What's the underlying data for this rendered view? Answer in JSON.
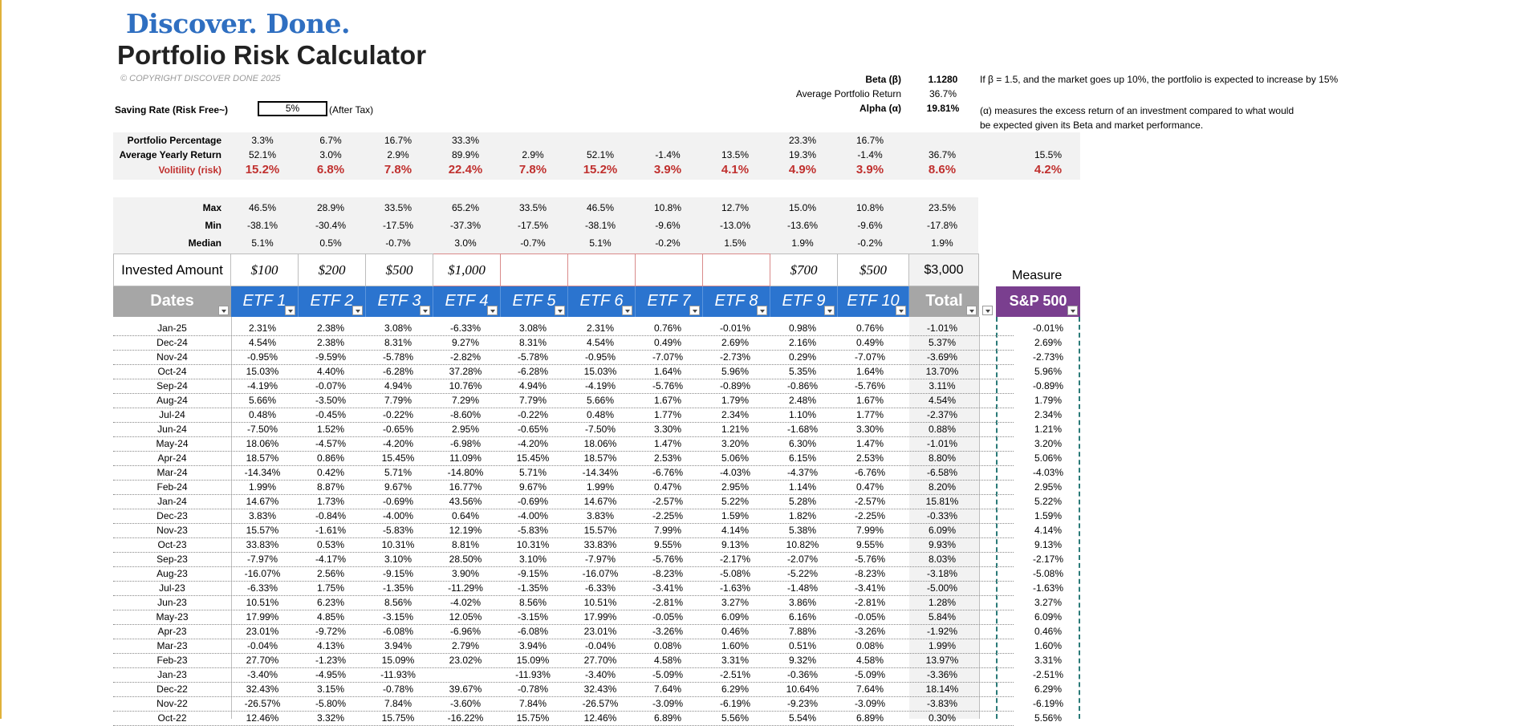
{
  "brand": "Discover. Done.",
  "title": "Portfolio Risk Calculator",
  "copyright": "© COPYRIGHT DISCOVER DONE 2025",
  "saving_rate": {
    "label": "Saving Rate (Risk Free~)",
    "value": "5%",
    "note": "(After Tax)"
  },
  "stats_right": [
    {
      "label": "Beta (β)",
      "value": "1.1280",
      "bold": true
    },
    {
      "label": "Average Portfolio Return",
      "value": "36.7%",
      "bold": false
    },
    {
      "label": "Alpha (α)",
      "value": "19.81%",
      "bold": true
    }
  ],
  "beta_note": "If β = 1.5, and the market goes up 10%, the portfolio is expected to increase by 15%",
  "alpha_note_1": "(α) measures the excess return of an investment compared to what would",
  "alpha_note_2": "be expected given its Beta and market performance.",
  "summary": {
    "portfolio_percentage": {
      "label": "Portfolio Percentage",
      "values": [
        "3.3%",
        "6.7%",
        "16.7%",
        "33.3%",
        "",
        "",
        "",
        "",
        "23.3%",
        "16.7%",
        "",
        ""
      ]
    },
    "avg_yearly_return": {
      "label": "Average Yearly Return",
      "values": [
        "52.1%",
        "3.0%",
        "2.9%",
        "89.9%",
        "2.9%",
        "52.1%",
        "-1.4%",
        "13.5%",
        "19.3%",
        "-1.4%",
        "36.7%",
        "15.5%"
      ]
    },
    "volatility": {
      "label": "Volitility (risk)",
      "values": [
        "15.2%",
        "6.8%",
        "7.8%",
        "22.4%",
        "7.8%",
        "15.2%",
        "3.9%",
        "4.1%",
        "4.9%",
        "3.9%",
        "8.6%",
        "4.2%"
      ]
    },
    "max": {
      "label": "Max",
      "values": [
        "46.5%",
        "28.9%",
        "33.5%",
        "65.2%",
        "33.5%",
        "46.5%",
        "10.8%",
        "12.7%",
        "15.0%",
        "10.8%",
        "23.5%"
      ]
    },
    "min": {
      "label": "Min",
      "values": [
        "-38.1%",
        "-30.4%",
        "-17.5%",
        "-37.3%",
        "-17.5%",
        "-38.1%",
        "-9.6%",
        "-13.0%",
        "-13.6%",
        "-9.6%",
        "-17.8%"
      ]
    },
    "median": {
      "label": "Median",
      "values": [
        "5.1%",
        "0.5%",
        "-0.7%",
        "3.0%",
        "-0.7%",
        "5.1%",
        "-0.2%",
        "1.5%",
        "1.9%",
        "-0.2%",
        "1.9%"
      ]
    }
  },
  "invested": {
    "label": "Invested Amount",
    "values": [
      "$100",
      "$200",
      "$500",
      "$1,000",
      "",
      "",
      "",
      "",
      "$700",
      "$500",
      "$3,000"
    ]
  },
  "measure_label": "Measure",
  "headers": {
    "dates": "Dates",
    "etfs": [
      "ETF 1",
      "ETF 2",
      "ETF 3",
      "ETF 4",
      "ETF 5",
      "ETF 6",
      "ETF 7",
      "ETF 8",
      "ETF 9",
      "ETF 10"
    ],
    "total": "Total",
    "sp500": "S&P 500"
  },
  "colors": {
    "etf_header": "#2b74cf",
    "dates_header": "#a6a6a6",
    "total_header": "#a6a6a6",
    "sp_header": "#7a3f8f",
    "vol_red": "#c0302e",
    "brand_blue": "#2f6fc1"
  },
  "rows": [
    [
      "Jan-25",
      "2.31%",
      "2.38%",
      "3.08%",
      "-6.33%",
      "3.08%",
      "2.31%",
      "0.76%",
      "-0.01%",
      "0.98%",
      "0.76%",
      "-1.01%",
      "-0.01%"
    ],
    [
      "Dec-24",
      "4.54%",
      "2.38%",
      "8.31%",
      "9.27%",
      "8.31%",
      "4.54%",
      "0.49%",
      "2.69%",
      "2.16%",
      "0.49%",
      "5.37%",
      "2.69%"
    ],
    [
      "Nov-24",
      "-0.95%",
      "-9.59%",
      "-5.78%",
      "-2.82%",
      "-5.78%",
      "-0.95%",
      "-7.07%",
      "-2.73%",
      "0.29%",
      "-7.07%",
      "-3.69%",
      "-2.73%"
    ],
    [
      "Oct-24",
      "15.03%",
      "4.40%",
      "-6.28%",
      "37.28%",
      "-6.28%",
      "15.03%",
      "1.64%",
      "5.96%",
      "5.35%",
      "1.64%",
      "13.70%",
      "5.96%"
    ],
    [
      "Sep-24",
      "-4.19%",
      "-0.07%",
      "4.94%",
      "10.76%",
      "4.94%",
      "-4.19%",
      "-5.76%",
      "-0.89%",
      "-0.86%",
      "-5.76%",
      "3.11%",
      "-0.89%"
    ],
    [
      "Aug-24",
      "5.66%",
      "-3.50%",
      "7.79%",
      "7.29%",
      "7.79%",
      "5.66%",
      "1.67%",
      "1.79%",
      "2.48%",
      "1.67%",
      "4.54%",
      "1.79%"
    ],
    [
      "Jul-24",
      "0.48%",
      "-0.45%",
      "-0.22%",
      "-8.60%",
      "-0.22%",
      "0.48%",
      "1.77%",
      "2.34%",
      "1.10%",
      "1.77%",
      "-2.37%",
      "2.34%"
    ],
    [
      "Jun-24",
      "-7.50%",
      "1.52%",
      "-0.65%",
      "2.95%",
      "-0.65%",
      "-7.50%",
      "3.30%",
      "1.21%",
      "-1.68%",
      "3.30%",
      "0.88%",
      "1.21%"
    ],
    [
      "May-24",
      "18.06%",
      "-4.57%",
      "-4.20%",
      "-6.98%",
      "-4.20%",
      "18.06%",
      "1.47%",
      "3.20%",
      "6.30%",
      "1.47%",
      "-1.01%",
      "3.20%"
    ],
    [
      "Apr-24",
      "18.57%",
      "0.86%",
      "15.45%",
      "11.09%",
      "15.45%",
      "18.57%",
      "2.53%",
      "5.06%",
      "6.15%",
      "2.53%",
      "8.80%",
      "5.06%"
    ],
    [
      "Mar-24",
      "-14.34%",
      "0.42%",
      "5.71%",
      "-14.80%",
      "5.71%",
      "-14.34%",
      "-6.76%",
      "-4.03%",
      "-4.37%",
      "-6.76%",
      "-6.58%",
      "-4.03%"
    ],
    [
      "Feb-24",
      "1.99%",
      "8.87%",
      "9.67%",
      "16.77%",
      "9.67%",
      "1.99%",
      "0.47%",
      "2.95%",
      "1.14%",
      "0.47%",
      "8.20%",
      "2.95%"
    ],
    [
      "Jan-24",
      "14.67%",
      "1.73%",
      "-0.69%",
      "43.56%",
      "-0.69%",
      "14.67%",
      "-2.57%",
      "5.22%",
      "5.28%",
      "-2.57%",
      "15.81%",
      "5.22%"
    ],
    [
      "Dec-23",
      "3.83%",
      "-0.84%",
      "-4.00%",
      "0.64%",
      "-4.00%",
      "3.83%",
      "-2.25%",
      "1.59%",
      "1.82%",
      "-2.25%",
      "-0.33%",
      "1.59%"
    ],
    [
      "Nov-23",
      "15.57%",
      "-1.61%",
      "-5.83%",
      "12.19%",
      "-5.83%",
      "15.57%",
      "7.99%",
      "4.14%",
      "5.38%",
      "7.99%",
      "6.09%",
      "4.14%"
    ],
    [
      "Oct-23",
      "33.83%",
      "0.53%",
      "10.31%",
      "8.81%",
      "10.31%",
      "33.83%",
      "9.55%",
      "9.13%",
      "10.82%",
      "9.55%",
      "9.93%",
      "9.13%"
    ],
    [
      "Sep-23",
      "-7.97%",
      "-4.17%",
      "3.10%",
      "28.50%",
      "3.10%",
      "-7.97%",
      "-5.76%",
      "-2.17%",
      "-2.07%",
      "-5.76%",
      "8.03%",
      "-2.17%"
    ],
    [
      "Aug-23",
      "-16.07%",
      "2.56%",
      "-9.15%",
      "3.90%",
      "-9.15%",
      "-16.07%",
      "-8.23%",
      "-5.08%",
      "-5.22%",
      "-8.23%",
      "-3.18%",
      "-5.08%"
    ],
    [
      "Jul-23",
      "-6.33%",
      "1.75%",
      "-1.35%",
      "-11.29%",
      "-1.35%",
      "-6.33%",
      "-3.41%",
      "-1.63%",
      "-1.48%",
      "-3.41%",
      "-5.00%",
      "-1.63%"
    ],
    [
      "Jun-23",
      "10.51%",
      "6.23%",
      "8.56%",
      "-4.02%",
      "8.56%",
      "10.51%",
      "-2.81%",
      "3.27%",
      "3.86%",
      "-2.81%",
      "1.28%",
      "3.27%"
    ],
    [
      "May-23",
      "17.99%",
      "4.85%",
      "-3.15%",
      "12.05%",
      "-3.15%",
      "17.99%",
      "-0.05%",
      "6.09%",
      "6.16%",
      "-0.05%",
      "5.84%",
      "6.09%"
    ],
    [
      "Apr-23",
      "23.01%",
      "-9.72%",
      "-6.08%",
      "-6.96%",
      "-6.08%",
      "23.01%",
      "-3.26%",
      "0.46%",
      "7.88%",
      "-3.26%",
      "-1.92%",
      "0.46%"
    ],
    [
      "Mar-23",
      "-0.04%",
      "4.13%",
      "3.94%",
      "2.79%",
      "3.94%",
      "-0.04%",
      "0.08%",
      "1.60%",
      "0.51%",
      "0.08%",
      "1.99%",
      "1.60%"
    ],
    [
      "Feb-23",
      "27.70%",
      "-1.23%",
      "15.09%",
      "23.02%",
      "15.09%",
      "27.70%",
      "4.58%",
      "3.31%",
      "9.32%",
      "4.58%",
      "13.97%",
      "3.31%"
    ],
    [
      "Jan-23",
      "-3.40%",
      "-4.95%",
      "-11.93%",
      "",
      "-11.93%",
      "-3.40%",
      "-5.09%",
      "-2.51%",
      "-0.36%",
      "-5.09%",
      "-3.36%",
      "-2.51%"
    ],
    [
      "Dec-22",
      "32.43%",
      "3.15%",
      "-0.78%",
      "39.67%",
      "-0.78%",
      "32.43%",
      "7.64%",
      "6.29%",
      "10.64%",
      "7.64%",
      "18.14%",
      "6.29%"
    ],
    [
      "Nov-22",
      "-26.57%",
      "-5.80%",
      "7.84%",
      "-3.60%",
      "7.84%",
      "-26.57%",
      "-3.09%",
      "-6.19%",
      "-9.23%",
      "-3.09%",
      "-3.83%",
      "-6.19%"
    ],
    [
      "Oct-22",
      "12.46%",
      "3.32%",
      "15.75%",
      "-16.22%",
      "15.75%",
      "12.46%",
      "6.89%",
      "5.56%",
      "5.54%",
      "6.89%",
      "0.30%",
      "5.56%"
    ]
  ]
}
